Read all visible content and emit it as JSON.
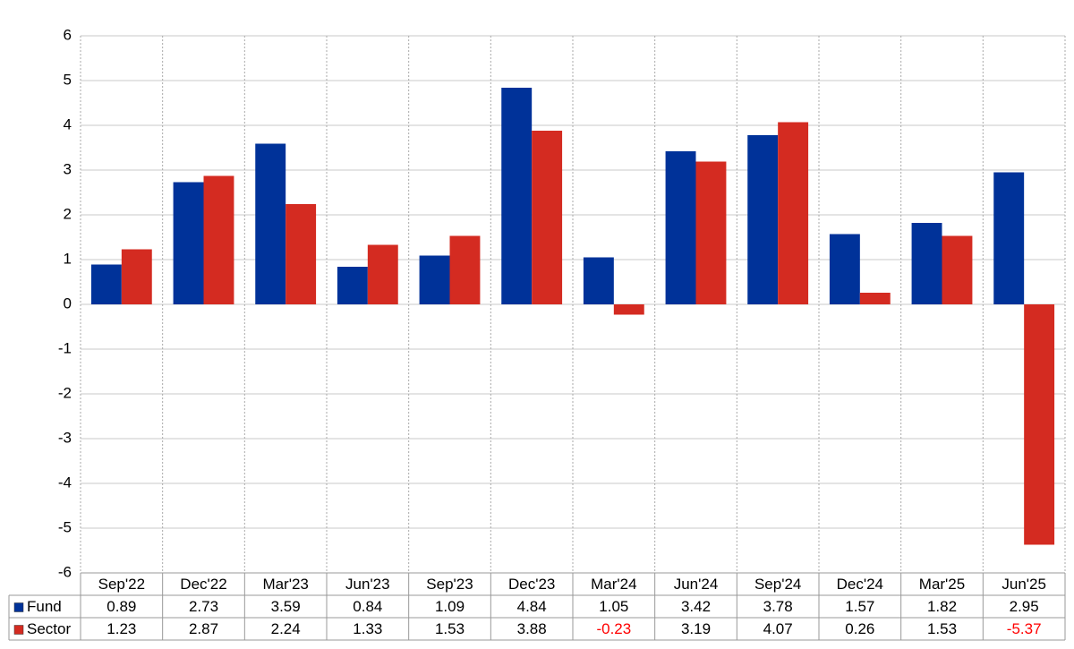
{
  "chart_data": {
    "type": "bar",
    "categories": [
      "Sep'22",
      "Dec'22",
      "Mar'23",
      "Jun'23",
      "Sep'23",
      "Dec'23",
      "Mar'24",
      "Jun'24",
      "Sep'24",
      "Dec'24",
      "Mar'25",
      "Jun'25"
    ],
    "series": [
      {
        "name": "Fund",
        "color": "#003299",
        "values": [
          0.89,
          2.73,
          3.59,
          0.84,
          1.09,
          4.84,
          1.05,
          3.42,
          3.78,
          1.57,
          1.82,
          2.95
        ]
      },
      {
        "name": "Sector",
        "color": "#d42b21",
        "values": [
          1.23,
          2.87,
          2.24,
          1.33,
          1.53,
          3.88,
          -0.23,
          3.19,
          4.07,
          0.26,
          1.53,
          -5.37
        ]
      }
    ],
    "ylim": [
      -6,
      6
    ],
    "yticks": [
      -6,
      -5,
      -4,
      -3,
      -2,
      -1,
      0,
      1,
      2,
      3,
      4,
      5,
      6
    ],
    "grid": true,
    "negative_label_color": "#ff0000"
  }
}
